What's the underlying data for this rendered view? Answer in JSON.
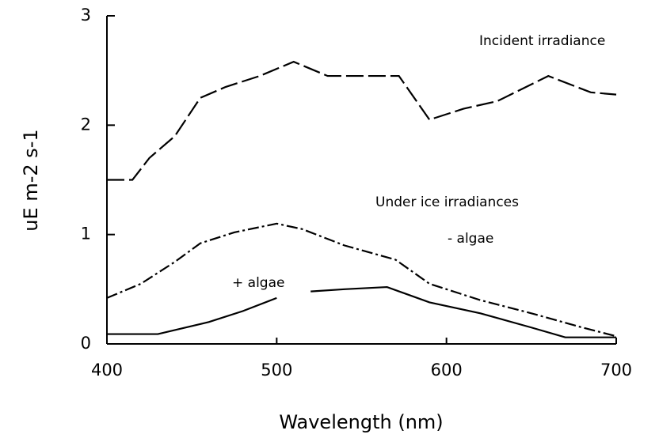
{
  "chart_data": {
    "type": "line",
    "xlabel": "Wavelength (nm)",
    "ylabel": "uE m-2 s-1",
    "annotations": [
      "Under ice irradiances"
    ],
    "xlim": [
      400,
      700
    ],
    "xticks": [
      400,
      500,
      600,
      700
    ],
    "ylim": [
      0,
      3
    ],
    "yticks": [
      0,
      1,
      2,
      3
    ],
    "series": [
      {
        "name": "Incident irradiance",
        "color": "#000000",
        "style": "dashed",
        "x": [
          400,
          415,
          425,
          440,
          455,
          470,
          490,
          510,
          530,
          550,
          572,
          590,
          610,
          630,
          660,
          685,
          700
        ],
        "values": [
          1.5,
          1.5,
          1.7,
          1.9,
          2.25,
          2.35,
          2.45,
          2.58,
          2.45,
          2.45,
          2.45,
          2.05,
          2.15,
          2.22,
          2.45,
          2.3,
          2.28
        ]
      },
      {
        "name": "- algae",
        "color": "#000000",
        "style": "dashdot",
        "x": [
          400,
          420,
          440,
          455,
          475,
          500,
          515,
          540,
          570,
          590,
          620,
          650,
          680,
          700
        ],
        "values": [
          0.42,
          0.55,
          0.75,
          0.92,
          1.02,
          1.1,
          1.05,
          0.9,
          0.77,
          0.55,
          0.4,
          0.28,
          0.15,
          0.07
        ]
      },
      {
        "name": "+ algae",
        "color": "#000000",
        "style": "solid",
        "x": [
          400,
          430,
          460,
          480,
          500,
          510,
          520,
          540,
          565,
          590,
          620,
          650,
          670,
          700
        ],
        "values": [
          0.09,
          0.09,
          0.2,
          0.3,
          0.42,
          null,
          0.48,
          0.5,
          0.52,
          0.38,
          0.28,
          0.15,
          0.06,
          0.06
        ]
      }
    ]
  }
}
